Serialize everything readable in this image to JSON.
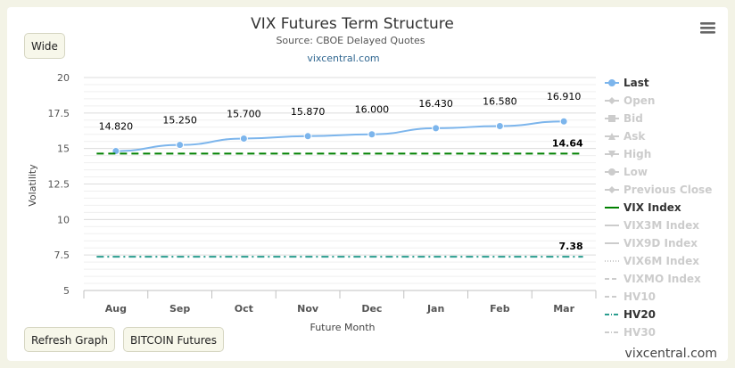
{
  "buttons": {
    "wide": "Wide",
    "refresh": "Refresh Graph",
    "bitcoin": "BITCOIN Futures"
  },
  "watermark": "vixcentral.com",
  "chart_data": {
    "type": "line",
    "title": "VIX Futures Term Structure",
    "subtitle": "Source: CBOE Delayed Quotes",
    "credit_link": "vixcentral.com",
    "xlabel": "Future Month",
    "ylabel": "Volatility",
    "categories": [
      "Aug",
      "Sep",
      "Oct",
      "Nov",
      "Dec",
      "Jan",
      "Feb",
      "Mar"
    ],
    "ylim": [
      5,
      20
    ],
    "yticks": [
      "5",
      "7.5",
      "10",
      "12.5",
      "15",
      "17.5",
      "20"
    ],
    "grid": true,
    "legend_placement": "right",
    "series": [
      {
        "name": "Last",
        "style": "solid-markers",
        "color": "#7cb5ec",
        "visible": true,
        "values": [
          14.82,
          15.25,
          15.7,
          15.87,
          16.0,
          16.43,
          16.58,
          16.91
        ],
        "labels": [
          "14.820",
          "15.250",
          "15.700",
          "15.870",
          "16.000",
          "16.430",
          "16.580",
          "16.910"
        ]
      },
      {
        "name": "VIX Index",
        "style": "dash",
        "color": "#008000",
        "visible": true,
        "values": [
          14.64,
          14.64,
          14.64,
          14.64,
          14.64,
          14.64,
          14.64,
          14.64
        ],
        "end_label": "14.64"
      },
      {
        "name": "HV20",
        "style": "dashdot",
        "color": "#2a9d8f",
        "visible": true,
        "values": [
          7.38,
          7.38,
          7.38,
          7.38,
          7.38,
          7.38,
          7.38,
          7.38
        ],
        "end_label": "7.38"
      }
    ],
    "legend": [
      {
        "label": "Last",
        "active": true,
        "symbol": "circle",
        "color": "#7cb5ec"
      },
      {
        "label": "Open",
        "active": false,
        "symbol": "diamond"
      },
      {
        "label": "Bid",
        "active": false,
        "symbol": "square"
      },
      {
        "label": "Ask",
        "active": false,
        "symbol": "triangle"
      },
      {
        "label": "High",
        "active": false,
        "symbol": "triangle-down"
      },
      {
        "label": "Low",
        "active": false,
        "symbol": "circle"
      },
      {
        "label": "Previous Close",
        "active": false,
        "symbol": "diamond"
      },
      {
        "label": "VIX Index",
        "active": true,
        "symbol": "line",
        "color": "#008000"
      },
      {
        "label": "VIX3M Index",
        "active": false,
        "symbol": "line"
      },
      {
        "label": "VIX9D Index",
        "active": false,
        "symbol": "line"
      },
      {
        "label": "VIX6M Index",
        "active": false,
        "symbol": "dot"
      },
      {
        "label": "VIXMO Index",
        "active": false,
        "symbol": "dash"
      },
      {
        "label": "HV10",
        "active": false,
        "symbol": "dash"
      },
      {
        "label": "HV20",
        "active": true,
        "symbol": "dashdot",
        "color": "#2a9d8f"
      },
      {
        "label": "HV30",
        "active": false,
        "symbol": "dashdot"
      }
    ]
  }
}
